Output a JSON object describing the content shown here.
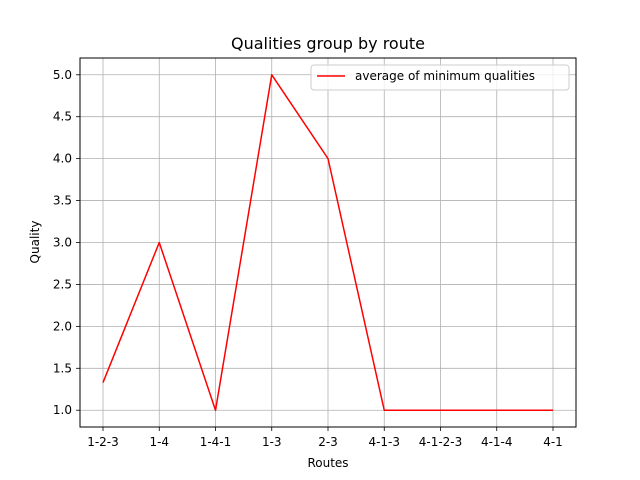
{
  "chart_data": {
    "type": "line",
    "title": "Qualities group by route",
    "xlabel": "Routes",
    "ylabel": "Quality",
    "categories": [
      "1-2-3",
      "1-4",
      "1-4-1",
      "1-3",
      "2-3",
      "4-1-3",
      "4-1-2-3",
      "4-1-4",
      "4-1"
    ],
    "series": [
      {
        "name": "average of minimum qualities",
        "color": "#ff0000",
        "values": [
          1.33,
          3.0,
          1.0,
          5.0,
          4.0,
          1.0,
          1.0,
          1.0,
          1.0
        ]
      }
    ],
    "ylim": [
      0.8,
      5.2
    ],
    "yticks": [
      "1.0",
      "1.5",
      "2.0",
      "2.5",
      "3.0",
      "3.5",
      "4.0",
      "4.5",
      "5.0"
    ],
    "grid": true,
    "legend_position": "top-right"
  }
}
